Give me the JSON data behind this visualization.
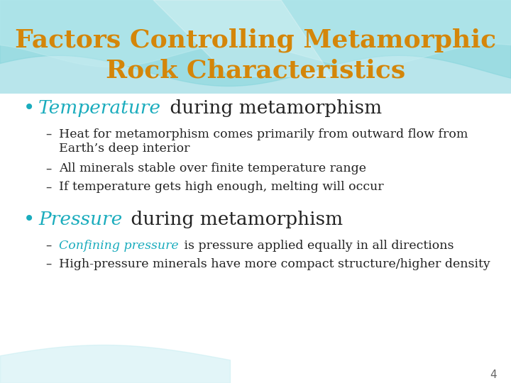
{
  "title_line1": "Factors Controlling Metamorphic",
  "title_line2": "Rock Characteristics",
  "title_color": "#D4860A",
  "title_fontsize": 26,
  "background_color": "#FFFFFF",
  "header_bg_color1": "#A8DDE3",
  "header_bg_color2": "#C8EEF2",
  "bullet_color": "#1AACBD",
  "bullet_items": [
    {
      "label": "Temperature",
      "label_color": "#1AACBD",
      "rest": " during metamorphism",
      "rest_color": "#222222",
      "fontsize": 19,
      "sub_items": [
        {
          "line1": "Heat for metamorphism comes primarily from outward flow from",
          "line2": "Earth’s deep interior",
          "color": "#222222",
          "fontsize": 12.5
        },
        {
          "line1": "All minerals stable over finite temperature range",
          "line2": null,
          "color": "#222222",
          "fontsize": 12.5
        },
        {
          "line1": "If temperature gets high enough, melting will occur",
          "line2": null,
          "color": "#222222",
          "fontsize": 12.5
        }
      ]
    },
    {
      "label": "Pressure",
      "label_color": "#1AACBD",
      "rest": " during metamorphism",
      "rest_color": "#222222",
      "fontsize": 19,
      "sub_items": [
        {
          "confining_text": "Confining pressure",
          "rest_text": " is pressure applied equally in all directions",
          "confining_color": "#1AACBD",
          "rest_color": "#222222",
          "fontsize": 12.5
        },
        {
          "line1": "High-pressure minerals have more compact structure/higher density",
          "line2": null,
          "color": "#222222",
          "fontsize": 12.5
        }
      ]
    }
  ],
  "page_number": "4",
  "page_number_color": "#666666",
  "dash_color": "#444444"
}
